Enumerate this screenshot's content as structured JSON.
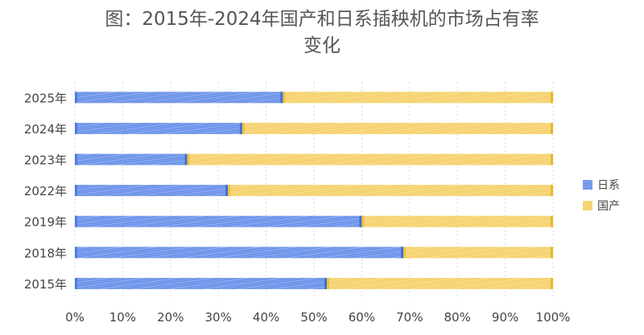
{
  "chart_data": {
    "type": "bar",
    "orientation": "horizontal",
    "stacked": "percent",
    "title_lines": [
      "图：2015年-2024年国产和日系插秧机的市场占有率",
      "变化"
    ],
    "categories": [
      "2025年",
      "2024年",
      "2023年",
      "2022年",
      "2019年",
      "2018年",
      "2015年"
    ],
    "series": [
      {
        "name": "日系",
        "values": [
          43.5,
          35,
          23.5,
          32,
          60,
          68.7,
          52.7
        ],
        "color": "#6d94ea"
      },
      {
        "name": "国产",
        "values": [
          56.5,
          65,
          76.5,
          68,
          40,
          31.3,
          47.3
        ],
        "color": "#f6d26e"
      }
    ],
    "xlim": [
      0,
      100
    ],
    "x_ticks": [
      "0%",
      "10%",
      "20%",
      "30%",
      "40%",
      "50%",
      "60%",
      "70%",
      "80%",
      "90%",
      "100%"
    ],
    "legend_position": "right",
    "grid": true
  }
}
